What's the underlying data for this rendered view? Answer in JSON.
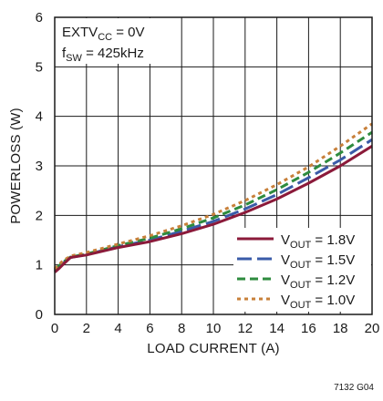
{
  "chart_data": {
    "type": "line",
    "title": "",
    "xlabel": "LOAD CURRENT (A)",
    "ylabel": "POWERLOSS (W)",
    "xlim": [
      0,
      20
    ],
    "ylim": [
      0,
      6
    ],
    "x_ticks": [
      0,
      2,
      4,
      6,
      8,
      10,
      12,
      14,
      16,
      18,
      20
    ],
    "y_ticks": [
      0,
      1,
      2,
      3,
      4,
      5,
      6
    ],
    "grid": true,
    "legend_position": "bottom-right",
    "annotations": [
      {
        "main": "EXTV",
        "sub": "CC",
        "rest": " = 0V"
      },
      {
        "main": "f",
        "sub": "SW",
        "rest": " = 425kHz"
      }
    ],
    "series": [
      {
        "label_main": "V",
        "label_sub": "OUT",
        "label_rest": " = 1.8V",
        "color": "#8b1a3a",
        "dash": "solid",
        "x": [
          0,
          0.25,
          0.5,
          1,
          2,
          4,
          6,
          8,
          10,
          12,
          14,
          16,
          18,
          20
        ],
        "y": [
          0.85,
          0.92,
          1.0,
          1.15,
          1.2,
          1.35,
          1.47,
          1.63,
          1.82,
          2.06,
          2.33,
          2.65,
          3.0,
          3.4
        ]
      },
      {
        "label_main": "V",
        "label_sub": "OUT",
        "label_rest": " = 1.5V",
        "color": "#3a5ba8",
        "dash": "long-dash",
        "x": [
          0,
          0.25,
          0.5,
          1,
          2,
          4,
          6,
          8,
          10,
          12,
          14,
          16,
          18,
          20
        ],
        "y": [
          0.88,
          0.95,
          1.03,
          1.15,
          1.21,
          1.37,
          1.5,
          1.68,
          1.88,
          2.13,
          2.42,
          2.76,
          3.12,
          3.53
        ]
      },
      {
        "label_main": "V",
        "label_sub": "OUT",
        "label_rest": " = 1.2V",
        "color": "#2e8b3e",
        "dash": "dash",
        "x": [
          0,
          0.25,
          0.5,
          1,
          2,
          4,
          6,
          8,
          10,
          12,
          14,
          16,
          18,
          20
        ],
        "y": [
          0.9,
          0.97,
          1.05,
          1.16,
          1.22,
          1.39,
          1.54,
          1.73,
          1.95,
          2.21,
          2.52,
          2.87,
          3.26,
          3.68
        ]
      },
      {
        "label_main": "V",
        "label_sub": "OUT",
        "label_rest": " = 1.0V",
        "color": "#c8803a",
        "dash": "dot",
        "x": [
          0,
          0.25,
          0.5,
          1,
          2,
          4,
          6,
          8,
          10,
          12,
          14,
          16,
          18,
          20
        ],
        "y": [
          0.92,
          1.0,
          1.08,
          1.18,
          1.25,
          1.42,
          1.59,
          1.79,
          2.02,
          2.3,
          2.62,
          2.98,
          3.4,
          3.85
        ]
      }
    ]
  },
  "footer": "7132 G04"
}
